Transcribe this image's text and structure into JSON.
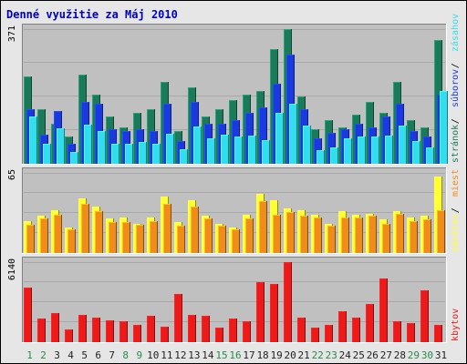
{
  "title": "Denné využitie za Máj 2010",
  "colors": {
    "background": "#e6e6e6",
    "panel": "#c0c0c0",
    "title": "#0000c0",
    "stran": "#1a7a5a",
    "suborov": "#1a3ae0",
    "zasahov": "#33ddee",
    "navstev": "#ffff33",
    "miest": "#f08c1a",
    "kbytov": "#ee1a1a",
    "weekday_label": "#222222",
    "weekend_label": "#2a8a4a"
  },
  "chart_data": {
    "days": [
      1,
      2,
      3,
      4,
      5,
      6,
      7,
      8,
      9,
      10,
      11,
      12,
      13,
      14,
      15,
      16,
      17,
      18,
      19,
      20,
      21,
      22,
      23,
      24,
      25,
      26,
      27,
      28,
      29,
      30,
      31
    ],
    "weekend_days": [
      1,
      2,
      8,
      9,
      15,
      16,
      22,
      23,
      29,
      30
    ],
    "panels": [
      {
        "id": "top",
        "type": "bar",
        "max_label": "371",
        "ymax": 371,
        "legend": [
          "stránok",
          "súborov",
          "zásahov"
        ],
        "series": [
          {
            "key": "stran",
            "name": "stránok",
            "values": [
              240,
              150,
              110,
              75,
              245,
              190,
              130,
              100,
              140,
              150,
              225,
              90,
              210,
              130,
              150,
              175,
              190,
              200,
              315,
              371,
              185,
              95,
              120,
              100,
              135,
              170,
              140,
              225,
              120,
              100,
              340
            ]
          },
          {
            "key": "suborov",
            "name": "súborov",
            "values": [
              150,
              80,
              145,
              55,
              170,
              165,
              95,
              90,
              95,
              90,
              165,
              62,
              170,
              110,
              110,
              120,
              140,
              155,
              220,
              300,
              150,
              70,
              85,
              95,
              110,
              100,
              130,
              165,
              90,
              75,
              190
            ]
          },
          {
            "key": "zasahov",
            "name": "zásahov",
            "values": [
              130,
              55,
              97,
              33,
              108,
              90,
              55,
              55,
              60,
              55,
              82,
              40,
              102,
              70,
              81,
              75,
              77,
              65,
              140,
              165,
              105,
              37,
              45,
              70,
              75,
              76,
              78,
              105,
              63,
              45,
              200
            ]
          }
        ]
      },
      {
        "id": "mid",
        "type": "bar",
        "max_label": "65",
        "ymax": 65,
        "legend": [
          "návštev",
          "miest"
        ],
        "series": [
          {
            "key": "navstev",
            "name": "návštev",
            "values": [
              26,
              30,
              35,
              21,
              44,
              38,
              28,
              29,
              24,
              29,
              46,
              25,
              43,
              30,
              24,
              21,
              31,
              48,
              43,
              36,
              35,
              31,
              24,
              34,
              31,
              32,
              27,
              34,
              29,
              30,
              62
            ]
          },
          {
            "key": "miest",
            "name": "miest",
            "values": [
              23,
              28,
              31,
              19,
              40,
              34,
              25,
              25,
              23,
              26,
              40,
              22,
              38,
              28,
              22,
              19,
              28,
              42,
              31,
              33,
              30,
              29,
              22,
              29,
              29,
              30,
              24,
              32,
              26,
              27,
              35
            ]
          }
        ]
      },
      {
        "id": "bot",
        "type": "bar",
        "max_label": "6140",
        "ymax": 6140,
        "legend": [
          "kbytov"
        ],
        "series": [
          {
            "key": "kbytov",
            "name": "kbytov",
            "values": [
              4200,
              1800,
              2200,
              1000,
              2100,
              1900,
              1700,
              1600,
              1300,
              2000,
              1200,
              3700,
              2100,
              2000,
              1100,
              1800,
              1600,
              4600,
              4500,
              6140,
              1900,
              1100,
              1300,
              2400,
              1900,
              2900,
              4900,
              1600,
              1500,
              4000,
              1300
            ]
          }
        ]
      }
    ]
  }
}
